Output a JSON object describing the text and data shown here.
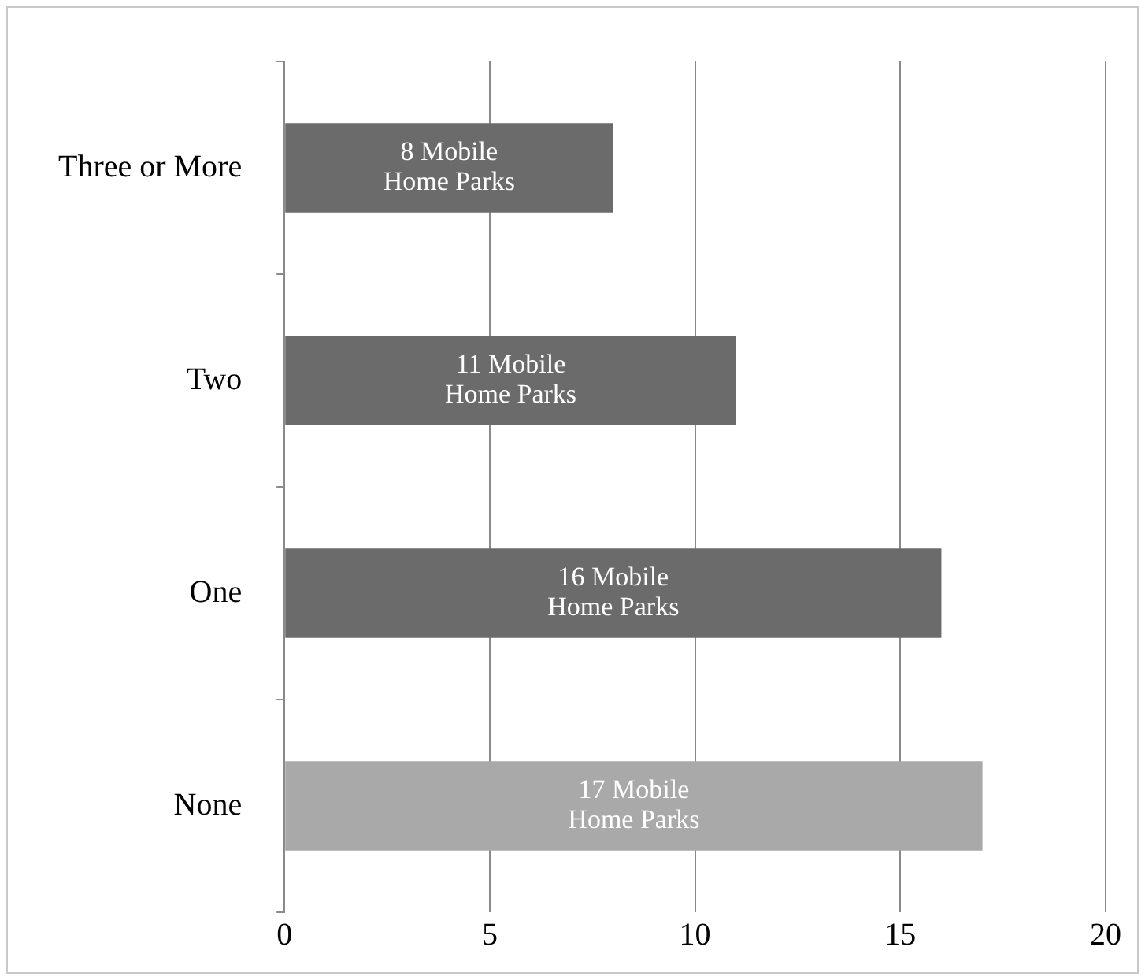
{
  "chart_data": {
    "type": "bar",
    "orientation": "horizontal",
    "categories": [
      "Three or More",
      "Two",
      "One",
      "None"
    ],
    "values": [
      8,
      11,
      16,
      17
    ],
    "colors": [
      "#6b6b6b",
      "#6b6b6b",
      "#6b6b6b",
      "#a9a9a9"
    ],
    "value_labels": [
      "8 Mobile Home Parks",
      "11 Mobile Home Parks",
      "16 Mobile Home Parks",
      "17 Mobile Home Parks"
    ],
    "xlim": [
      0,
      20
    ],
    "xticks": [
      0,
      5,
      10,
      15,
      20
    ],
    "grid": "x"
  }
}
